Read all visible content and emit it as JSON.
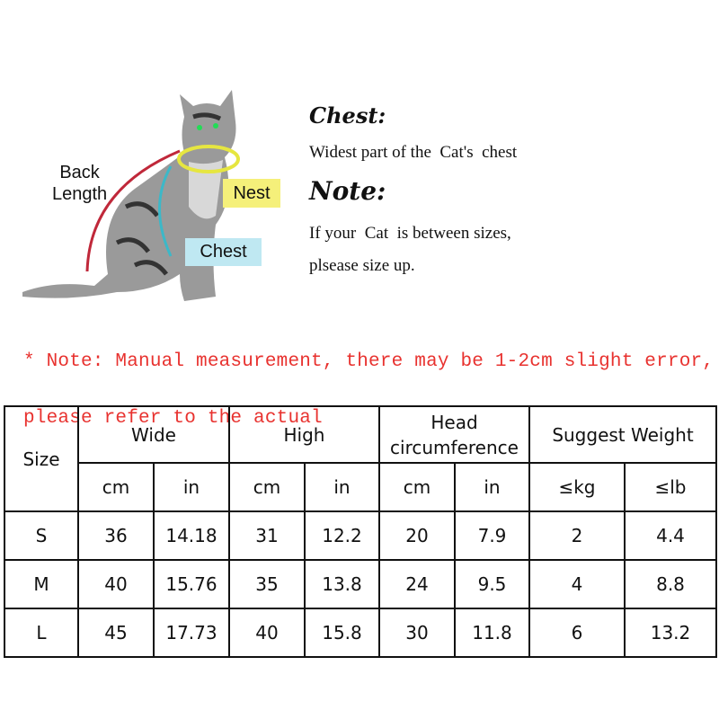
{
  "diagram": {
    "labels": {
      "back_length": "Back\nLength",
      "nest": "Nest",
      "chest": "Chest"
    },
    "colors": {
      "back_length": "#c0283a",
      "nest": "#f5f07a",
      "nest_ring": "#e6e640",
      "chest": "#bfe8f2",
      "chest_ring": "#3cb8c8"
    }
  },
  "info": {
    "chest_heading": "Chest:",
    "chest_text": "Widest part of the  Cat's  chest",
    "note_heading": "Note:",
    "note_line1": "If your  Cat  is between sizes,",
    "note_line2": "plsease size up."
  },
  "warning": {
    "line1": "* Note: Manual measurement, there may be 1-2cm slight error,",
    "line2": "please refer to the actual",
    "color": "#e8322f"
  },
  "table": {
    "size_header": "Size",
    "groups": [
      "Wide",
      "High",
      "Head circumference",
      "Suggest Weight"
    ],
    "units": [
      "cm",
      "in",
      "cm",
      "in",
      "cm",
      "in",
      "≤kg",
      "≤lb"
    ],
    "rows": [
      [
        "S",
        "36",
        "14.18",
        "31",
        "12.2",
        "20",
        "7.9",
        "2",
        "4.4"
      ],
      [
        "M",
        "40",
        "15.76",
        "35",
        "13.8",
        "24",
        "9.5",
        "4",
        "8.8"
      ],
      [
        "L",
        "45",
        "17.73",
        "40",
        "15.8",
        "30",
        "11.8",
        "6",
        "13.2"
      ]
    ]
  }
}
